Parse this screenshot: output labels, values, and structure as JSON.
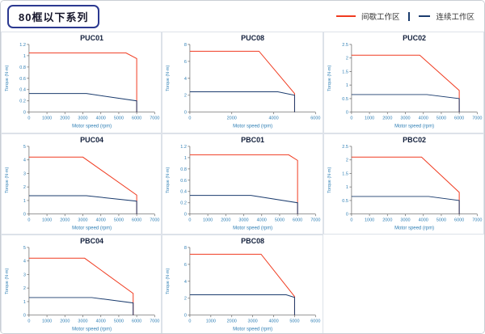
{
  "header": {
    "title": "80框以下系列",
    "legend": [
      {
        "label": "间歇工作区",
        "color": "#f03b20"
      },
      {
        "label": "连续工作区",
        "color": "#1b3c6e"
      }
    ]
  },
  "chart_data": [
    {
      "type": "line",
      "title": "PUC01",
      "xlabel": "Motor speed (rpm)",
      "ylabel": "Torque (N·m)",
      "xlim": [
        0,
        7000
      ],
      "ylim": [
        0,
        1.2
      ],
      "xticks": [
        0,
        1000,
        2000,
        3000,
        4000,
        5000,
        6000,
        7000
      ],
      "yticks": [
        0,
        0.2,
        0.4,
        0.6,
        0.8,
        1,
        1.2
      ],
      "series": [
        {
          "name": "间歇工作区",
          "color": "#f03b20",
          "points": [
            [
              0,
              1.05
            ],
            [
              5400,
              1.05
            ],
            [
              6000,
              0.95
            ],
            [
              6000,
              0
            ]
          ]
        },
        {
          "name": "连续工作区",
          "color": "#1b3c6e",
          "points": [
            [
              0,
              0.33
            ],
            [
              3200,
              0.33
            ],
            [
              6000,
              0.2
            ],
            [
              6000,
              0
            ]
          ]
        }
      ]
    },
    {
      "type": "line",
      "title": "PUC08",
      "xlabel": "Motor speed (rpm)",
      "ylabel": "Torque (N·m)",
      "xlim": [
        0,
        6000
      ],
      "ylim": [
        0,
        8
      ],
      "xticks": [
        0,
        2000,
        4000,
        6000
      ],
      "yticks": [
        0,
        2,
        4,
        6,
        8
      ],
      "series": [
        {
          "name": "间歇工作区",
          "color": "#f03b20",
          "points": [
            [
              0,
              7.2
            ],
            [
              3300,
              7.2
            ],
            [
              5000,
              2.2
            ],
            [
              5000,
              0
            ]
          ]
        },
        {
          "name": "连续工作区",
          "color": "#1b3c6e",
          "points": [
            [
              0,
              2.4
            ],
            [
              4200,
              2.4
            ],
            [
              5000,
              2.0
            ],
            [
              5000,
              0
            ]
          ]
        }
      ]
    },
    {
      "type": "line",
      "title": "PUC02",
      "xlabel": "Motor speed (rpm)",
      "ylabel": "Torque (N·m)",
      "xlim": [
        0,
        7000
      ],
      "ylim": [
        0,
        2.5
      ],
      "xticks": [
        0,
        1000,
        2000,
        3000,
        4000,
        5000,
        6000,
        7000
      ],
      "yticks": [
        0,
        0.5,
        1,
        1.5,
        2,
        2.5
      ],
      "series": [
        {
          "name": "间歇工作区",
          "color": "#f03b20",
          "points": [
            [
              0,
              2.1
            ],
            [
              3800,
              2.1
            ],
            [
              6000,
              0.8
            ],
            [
              6000,
              0
            ]
          ]
        },
        {
          "name": "连续工作区",
          "color": "#1b3c6e",
          "points": [
            [
              0,
              0.65
            ],
            [
              4200,
              0.65
            ],
            [
              6000,
              0.5
            ],
            [
              6000,
              0
            ]
          ]
        }
      ]
    },
    {
      "type": "line",
      "title": "PUC04",
      "xlabel": "Motor speed (rpm)",
      "ylabel": "Torque (N·m)",
      "xlim": [
        0,
        7000
      ],
      "ylim": [
        0,
        5
      ],
      "xticks": [
        0,
        1000,
        2000,
        3000,
        4000,
        5000,
        6000,
        7000
      ],
      "yticks": [
        0,
        1,
        2,
        3,
        4,
        5
      ],
      "series": [
        {
          "name": "间歇工作区",
          "color": "#f03b20",
          "points": [
            [
              0,
              4.2
            ],
            [
              3000,
              4.2
            ],
            [
              6000,
              1.4
            ],
            [
              6000,
              0
            ]
          ]
        },
        {
          "name": "连续工作区",
          "color": "#1b3c6e",
          "points": [
            [
              0,
              1.35
            ],
            [
              3200,
              1.35
            ],
            [
              6000,
              0.95
            ],
            [
              6000,
              0
            ]
          ]
        }
      ]
    },
    {
      "type": "line",
      "title": "PBC01",
      "xlabel": "Motor speed (rpm)",
      "ylabel": "Torque (N·m)",
      "xlim": [
        0,
        7000
      ],
      "ylim": [
        0,
        1.2
      ],
      "xticks": [
        0,
        1000,
        2000,
        3000,
        4000,
        5000,
        6000,
        7000
      ],
      "yticks": [
        0,
        0.2,
        0.4,
        0.6,
        0.8,
        1,
        1.2
      ],
      "series": [
        {
          "name": "间歇工作区",
          "color": "#f03b20",
          "points": [
            [
              0,
              1.05
            ],
            [
              5500,
              1.05
            ],
            [
              6000,
              0.95
            ],
            [
              6000,
              0
            ]
          ]
        },
        {
          "name": "连续工作区",
          "color": "#1b3c6e",
          "points": [
            [
              0,
              0.33
            ],
            [
              3400,
              0.33
            ],
            [
              6000,
              0.2
            ],
            [
              6000,
              0
            ]
          ]
        }
      ]
    },
    {
      "type": "line",
      "title": "PBC02",
      "xlabel": "Motor speed (rpm)",
      "ylabel": "Torque (N·m)",
      "xlim": [
        0,
        7000
      ],
      "ylim": [
        0,
        2.5
      ],
      "xticks": [
        0,
        1000,
        2000,
        3000,
        4000,
        5000,
        6000,
        7000
      ],
      "yticks": [
        0,
        0.5,
        1,
        1.5,
        2,
        2.5
      ],
      "series": [
        {
          "name": "间歇工作区",
          "color": "#f03b20",
          "points": [
            [
              0,
              2.1
            ],
            [
              3900,
              2.1
            ],
            [
              6000,
              0.8
            ],
            [
              6000,
              0
            ]
          ]
        },
        {
          "name": "连续工作区",
          "color": "#1b3c6e",
          "points": [
            [
              0,
              0.65
            ],
            [
              4300,
              0.65
            ],
            [
              6000,
              0.5
            ],
            [
              6000,
              0
            ]
          ]
        }
      ]
    },
    {
      "type": "line",
      "title": "PBC04",
      "xlabel": "Motor speed (rpm)",
      "ylabel": "Torque (N·m)",
      "xlim": [
        0,
        7000
      ],
      "ylim": [
        0,
        5
      ],
      "xticks": [
        0,
        1000,
        2000,
        3000,
        4000,
        5000,
        6000,
        7000
      ],
      "yticks": [
        0,
        1,
        2,
        3,
        4,
        5
      ],
      "series": [
        {
          "name": "间歇工作区",
          "color": "#f03b20",
          "points": [
            [
              0,
              4.2
            ],
            [
              3100,
              4.2
            ],
            [
              5800,
              1.6
            ],
            [
              5800,
              0
            ]
          ]
        },
        {
          "name": "连续工作区",
          "color": "#1b3c6e",
          "points": [
            [
              0,
              1.3
            ],
            [
              3500,
              1.3
            ],
            [
              5800,
              0.9
            ],
            [
              5800,
              0
            ]
          ]
        }
      ]
    },
    {
      "type": "line",
      "title": "PBC08",
      "xlabel": "Motor speed (rpm)",
      "ylabel": "Torque (N·m)",
      "xlim": [
        0,
        6000
      ],
      "ylim": [
        0,
        8
      ],
      "xticks": [
        0,
        1000,
        2000,
        3000,
        4000,
        5000,
        6000
      ],
      "yticks": [
        0,
        2,
        4,
        6,
        8
      ],
      "series": [
        {
          "name": "间歇工作区",
          "color": "#f03b20",
          "points": [
            [
              0,
              7.2
            ],
            [
              3400,
              7.2
            ],
            [
              5000,
              2.2
            ],
            [
              5000,
              0
            ]
          ]
        },
        {
          "name": "连续工作区",
          "color": "#1b3c6e",
          "points": [
            [
              0,
              2.4
            ],
            [
              4600,
              2.4
            ],
            [
              5000,
              2.1
            ],
            [
              5000,
              0
            ]
          ]
        }
      ]
    }
  ]
}
